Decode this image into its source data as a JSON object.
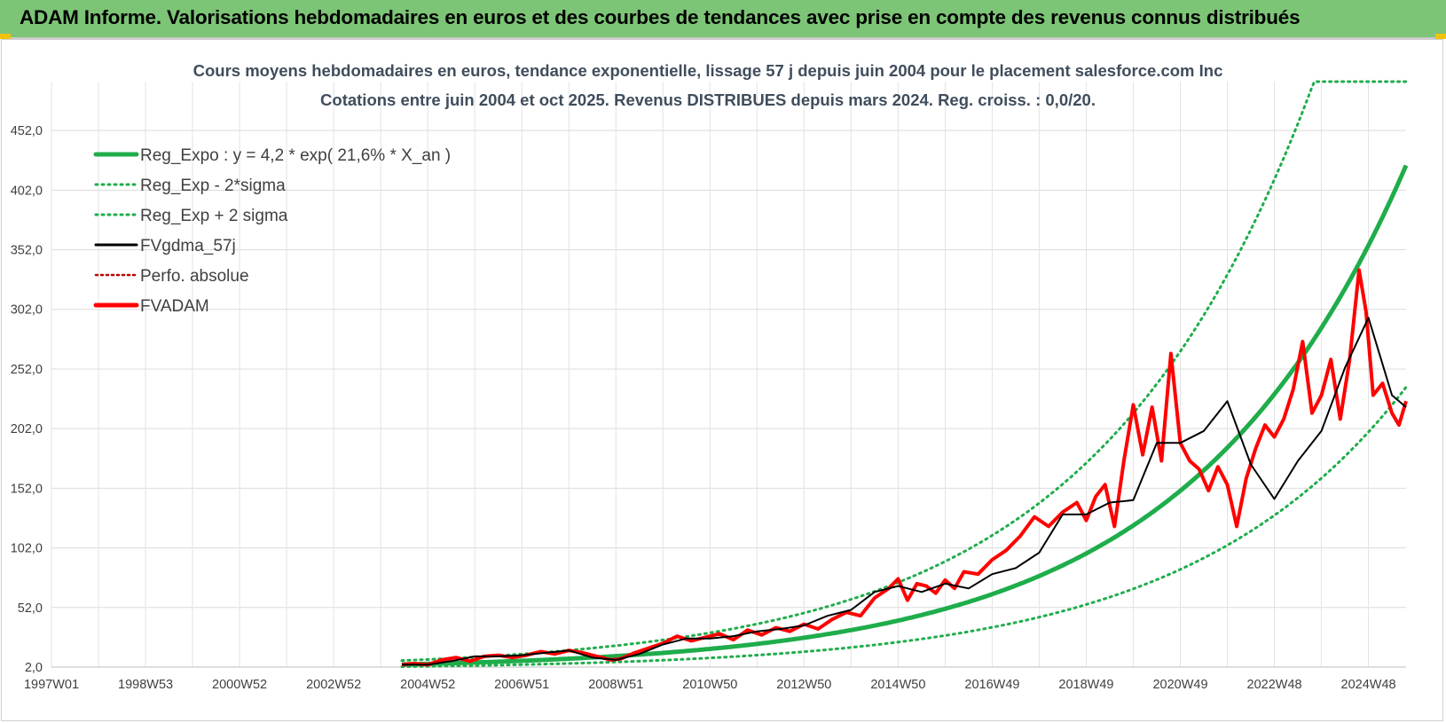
{
  "banner": {
    "title": "ADAM Informe. Valorisations hebdomadaires en euros et des courbes de tendances avec prise en compte des revenus connus distribués",
    "color": "#7cc576"
  },
  "chart_data": {
    "type": "line",
    "title": "Cours moyens hebdomadaires en euros, tendance exponentielle, lissage 57 j depuis juin 2004 pour le placement salesforce.com Inc",
    "subtitle": "Cotations entre juin 2004 et oct 2025. Revenus DISTRIBUES depuis mars 2024. Reg. croiss. : 0,0/20.",
    "xlabel": "",
    "ylabel": "",
    "x_range": [
      1997.0,
      2025.8
    ],
    "ylim": [
      2.0,
      493.0
    ],
    "grid": true,
    "legend_position": "top-left",
    "x_tick_labels": [
      "1997W01",
      "1998W53",
      "2000W52",
      "2002W52",
      "2004W52",
      "2006W51",
      "2008W51",
      "2010W50",
      "2012W50",
      "2014W50",
      "2016W49",
      "2018W49",
      "2020W49",
      "2022W48",
      "2024W48"
    ],
    "x_tick_years": [
      1997.0,
      1999.0,
      2001.0,
      2003.0,
      2005.0,
      2007.0,
      2009.0,
      2011.0,
      2013.0,
      2015.0,
      2017.0,
      2019.0,
      2021.0,
      2023.0,
      2025.0
    ],
    "y_ticks": [
      2.0,
      52.0,
      102.0,
      152.0,
      202.0,
      252.0,
      302.0,
      352.0,
      402.0,
      452.0
    ],
    "y_tick_labels": [
      "2,0",
      "52,0",
      "102,0",
      "152,0",
      "202,0",
      "252,0",
      "302,0",
      "352,0",
      "402,0",
      "452,0"
    ],
    "regression": {
      "a": 4.2,
      "rate": 0.216,
      "x0": 2004.45,
      "x_end": 2025.8,
      "sigma_low_factor": 0.56,
      "sigma_high_factor": 1.78
    },
    "series": [
      {
        "name": "Reg_Expo : y = 4,2 * exp( 21,6% *  X_an )",
        "color": "#1fad4b",
        "style": "solid-thick"
      },
      {
        "name": "Reg_Exp - 2*sigma",
        "color": "#1fad4b",
        "style": "dotted"
      },
      {
        "name": "Reg_Exp + 2 sigma",
        "color": "#1fad4b",
        "style": "dotted"
      },
      {
        "name": "FVgdma_57j",
        "color": "#000000",
        "style": "solid",
        "x": [
          2004.45,
          2005.0,
          2005.5,
          2006.0,
          2006.5,
          2007.0,
          2007.5,
          2008.0,
          2008.5,
          2009.0,
          2009.5,
          2010.0,
          2010.5,
          2011.0,
          2011.5,
          2012.0,
          2012.5,
          2013.0,
          2013.5,
          2014.0,
          2014.5,
          2015.0,
          2015.5,
          2016.0,
          2016.5,
          2017.0,
          2017.5,
          2018.0,
          2018.5,
          2019.0,
          2019.5,
          2020.0,
          2020.5,
          2021.0,
          2021.5,
          2022.0,
          2022.5,
          2023.0,
          2023.5,
          2024.0,
          2024.5,
          2025.0,
          2025.5,
          2025.8
        ],
        "y": [
          4,
          4,
          7,
          11,
          11,
          12,
          14,
          16,
          10,
          8,
          13,
          21,
          26,
          26,
          28,
          32,
          34,
          37,
          45,
          50,
          65,
          70,
          65,
          72,
          68,
          80,
          85,
          98,
          130,
          130,
          140,
          142,
          190,
          190,
          200,
          225,
          172,
          143,
          175,
          200,
          253,
          295,
          230,
          220
        ]
      },
      {
        "name": "Perfo. absolue",
        "color": "#c00000",
        "style": "dotted",
        "x": [],
        "y": []
      },
      {
        "name": "FVADAM",
        "color": "#ff0000",
        "style": "solid-thick",
        "x": [
          2004.45,
          2004.7,
          2005.0,
          2005.3,
          2005.6,
          2005.9,
          2006.2,
          2006.5,
          2006.8,
          2007.1,
          2007.4,
          2007.7,
          2008.0,
          2008.3,
          2008.6,
          2008.9,
          2009.1,
          2009.4,
          2009.7,
          2010.0,
          2010.3,
          2010.6,
          2010.9,
          2011.2,
          2011.5,
          2011.8,
          2012.1,
          2012.4,
          2012.7,
          2013.0,
          2013.3,
          2013.6,
          2013.9,
          2014.2,
          2014.5,
          2014.8,
          2015.0,
          2015.2,
          2015.4,
          2015.6,
          2015.8,
          2016.0,
          2016.2,
          2016.4,
          2016.7,
          2017.0,
          2017.3,
          2017.6,
          2017.9,
          2018.2,
          2018.5,
          2018.8,
          2019.0,
          2019.2,
          2019.4,
          2019.6,
          2019.8,
          2020.0,
          2020.2,
          2020.4,
          2020.6,
          2020.8,
          2021.0,
          2021.2,
          2021.4,
          2021.6,
          2021.8,
          2022.0,
          2022.2,
          2022.4,
          2022.6,
          2022.8,
          2023.0,
          2023.2,
          2023.4,
          2023.6,
          2023.8,
          2024.0,
          2024.2,
          2024.4,
          2024.6,
          2024.8,
          2024.95,
          2025.1,
          2025.3,
          2025.5,
          2025.65,
          2025.8
        ],
        "y": [
          4,
          5,
          4,
          8,
          10,
          7,
          11,
          12,
          10,
          12,
          15,
          13,
          16,
          14,
          11,
          8,
          9,
          14,
          18,
          22,
          28,
          24,
          27,
          30,
          25,
          33,
          29,
          35,
          32,
          38,
          34,
          42,
          48,
          45,
          60,
          68,
          76,
          58,
          72,
          70,
          64,
          75,
          68,
          82,
          80,
          92,
          100,
          112,
          128,
          120,
          132,
          140,
          125,
          145,
          155,
          120,
          175,
          222,
          180,
          220,
          175,
          265,
          190,
          175,
          168,
          150,
          170,
          155,
          120,
          160,
          185,
          205,
          195,
          210,
          235,
          275,
          215,
          230,
          260,
          210,
          260,
          335,
          300,
          230,
          240,
          215,
          205,
          225
        ]
      }
    ]
  }
}
